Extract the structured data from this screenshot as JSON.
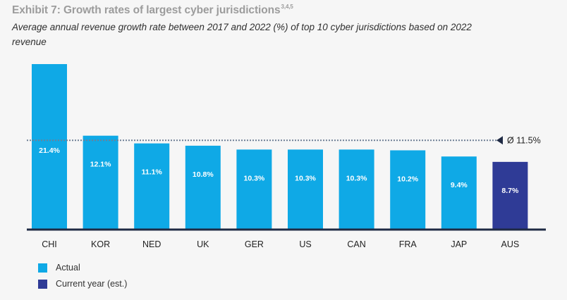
{
  "header": {
    "title": "Exhibit 7: Growth rates of largest cyber jurisdictions",
    "title_sup": "3,4,5",
    "subtitle": "Average annual revenue growth rate between 2017 and 2022 (%) of top 10 cyber jurisdictions based on 2022 revenue"
  },
  "chart_data": {
    "type": "bar",
    "title": "Exhibit 7: Growth rates of largest cyber jurisdictions",
    "subtitle": "Average annual revenue growth rate between 2017 and 2022 (%) of top 10 cyber jurisdictions based on 2022 revenue",
    "xlabel": "",
    "ylabel": "",
    "ylim": [
      0,
      21.4
    ],
    "grid": false,
    "categories": [
      "CHI",
      "KOR",
      "NED",
      "UK",
      "GER",
      "US",
      "CAN",
      "FRA",
      "JAP",
      "AUS"
    ],
    "values": [
      21.4,
      12.1,
      11.1,
      10.8,
      10.3,
      10.3,
      10.3,
      10.2,
      9.4,
      8.7
    ],
    "value_labels": [
      "21.4%",
      "12.1%",
      "11.1%",
      "10.8%",
      "10.3%",
      "10.3%",
      "10.3%",
      "10.2%",
      "9.4%",
      "8.7%"
    ],
    "bar_series": [
      "Actual",
      "Actual",
      "Actual",
      "Actual",
      "Actual",
      "Actual",
      "Actual",
      "Actual",
      "Actual",
      "Current year (est.)"
    ],
    "average": {
      "value": 11.5,
      "label": "Ø 11.5%"
    },
    "legend": [
      {
        "name": "Actual",
        "color": "#0fa9e6"
      },
      {
        "name": "Current year (est.)",
        "color": "#2f3b96"
      }
    ],
    "legend_position": "bottom-left"
  },
  "colors": {
    "actual": "#0fa9e6",
    "estimate": "#2f3b96",
    "axis": "#1f2a44",
    "average_line": "#6e7f95",
    "label_text": "#ffffff",
    "tick_text": "#222222"
  }
}
